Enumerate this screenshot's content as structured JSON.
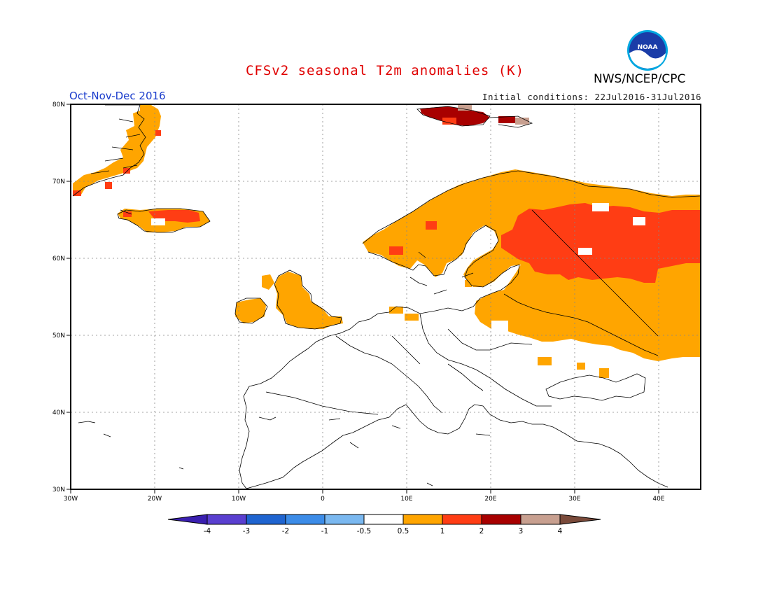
{
  "title": "CFSv2 seasonal T2m anomalies (K)",
  "organization": "NWS/NCEP/CPC",
  "logo_text": "NOAA",
  "season": "Oct-Nov-Dec 2016",
  "initial_conditions": "Initial conditions: 22Jul2016-31Jul2016",
  "axes": {
    "lat_labels": [
      "80N",
      "70N",
      "60N",
      "50N",
      "40N",
      "30N"
    ],
    "lon_labels": [
      "30W",
      "20W",
      "10W",
      "0",
      "10E",
      "20E",
      "30E",
      "40E"
    ]
  },
  "colorbar": {
    "labels": [
      "-4",
      "-3",
      "-2",
      "-1",
      "-0.5",
      "0.5",
      "1",
      "2",
      "3",
      "4"
    ],
    "colors": [
      "#3a1fb0",
      "#5a3fd0",
      "#1f64d0",
      "#3c8ce8",
      "#7ab8f0",
      "#ffffff",
      "#ffa500",
      "#ff3d14",
      "#a80000",
      "#c8a090",
      "#7a4a3a"
    ]
  },
  "palette": {
    "anom_05_1": "#ffa500",
    "anom_1_2": "#ff3d14",
    "anom_2_3": "#a80000",
    "anom_3_4": "#c8a090"
  }
}
